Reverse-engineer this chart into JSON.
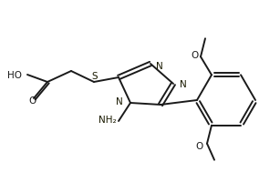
{
  "bg_color": "#ffffff",
  "line_color": "#1a1a1a",
  "text_color": "#1a1a1a",
  "n_color": "#1a1a00",
  "s_color": "#1a1a00",
  "lw": 1.4,
  "figsize": [
    3.07,
    2.01
  ],
  "dpi": 100,
  "xlim": [
    0,
    307
  ],
  "ylim": [
    0,
    201
  ]
}
